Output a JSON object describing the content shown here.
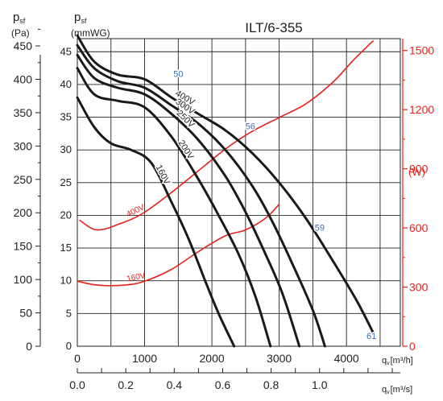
{
  "chart_data": {
    "type": "line",
    "title": "ILT/6-355",
    "left_axis": {
      "pa_label_main": "p",
      "pa_label_sub": "sf",
      "pa_unit": "(Pa)",
      "pa_ticks": [
        "0",
        "50",
        "100",
        "150",
        "200",
        "250",
        "300",
        "350",
        "400",
        "450"
      ],
      "mmwg_label_main": "p",
      "mmwg_label_sub": "sf",
      "mmwg_unit": "(mmWG)",
      "mmwg_ticks": [
        "0",
        "5",
        "10",
        "15",
        "20",
        "25",
        "30",
        "35",
        "40",
        "45"
      ],
      "ylim_mmwg": [
        0,
        47
      ]
    },
    "right_axis": {
      "unit": "(W)",
      "ticks": [
        "0",
        "300",
        "600",
        "900",
        "1200",
        "1500"
      ],
      "ylim": [
        0,
        1560
      ]
    },
    "x_axis": {
      "label_main": "q",
      "label_sub": "v",
      "label_unit": "[m³/h]",
      "ticks": [
        "0",
        "1000",
        "2000",
        "3000",
        "4000"
      ],
      "xlim": [
        0,
        4800
      ]
    },
    "x2_axis": {
      "label_main": "q",
      "label_sub": "v",
      "label_unit": "[m³/s]",
      "ticks": [
        "0.0",
        "0.2",
        "0.4",
        "0.6",
        "0.8",
        "1.0"
      ]
    },
    "pressure_series": [
      {
        "name": "400V",
        "x": [
          0,
          250,
          600,
          1000,
          1400,
          1800,
          2200,
          2600,
          3000,
          3400,
          3800,
          4150,
          4400
        ],
        "y": [
          47.5,
          43.5,
          41.5,
          40.8,
          38,
          35.5,
          33,
          29.5,
          25,
          19.5,
          13,
          7,
          2
        ]
      },
      {
        "name": "300V",
        "x": [
          0,
          250,
          600,
          1000,
          1400,
          1800,
          2200,
          2600,
          2900,
          3200,
          3500,
          3680
        ],
        "y": [
          46,
          42.5,
          40.5,
          39.5,
          36.8,
          34,
          30,
          24.5,
          19,
          12.5,
          5.5,
          0
        ]
      },
      {
        "name": "250V",
        "x": [
          0,
          250,
          600,
          1000,
          1400,
          1800,
          2200,
          2500,
          2800,
          3050,
          3300
        ],
        "y": [
          44.5,
          41,
          39.5,
          38.5,
          35.5,
          31.5,
          26,
          20.5,
          14,
          8,
          0
        ]
      },
      {
        "name": "200V",
        "x": [
          0,
          250,
          600,
          1000,
          1400,
          1800,
          2100,
          2400,
          2650,
          2870
        ],
        "y": [
          42.5,
          38.5,
          37.5,
          36.5,
          32,
          25.5,
          20,
          14,
          7.5,
          0
        ]
      },
      {
        "name": "160V",
        "x": [
          0,
          250,
          500,
          800,
          1100,
          1400,
          1650,
          1900,
          2100,
          2330
        ],
        "y": [
          38,
          33.5,
          31,
          30,
          28,
          22,
          16.5,
          10,
          5,
          0
        ]
      }
    ],
    "power_series": [
      {
        "name": "400V",
        "x": [
          30,
          300,
          700,
          1000,
          1400,
          1800,
          2200,
          2600,
          3000,
          3400,
          3800,
          4100,
          4400
        ],
        "y": [
          640,
          590,
          630,
          680,
          780,
          890,
          1000,
          1090,
          1160,
          1230,
          1340,
          1450,
          1550
        ]
      },
      {
        "name": "160V",
        "x": [
          0,
          300,
          700,
          1000,
          1400,
          1800,
          2200,
          2500,
          2800,
          3000
        ],
        "y": [
          330,
          310,
          310,
          330,
          390,
          480,
          560,
          590,
          650,
          720
        ]
      }
    ],
    "point_labels": [
      {
        "text": "50",
        "x": 1380,
        "y": 41.5
      },
      {
        "text": "56",
        "x": 2450,
        "y": 33.5
      },
      {
        "text": "59",
        "x": 3480,
        "y": 18
      },
      {
        "text": "61",
        "x": 4250,
        "y": 1.5
      }
    ],
    "grid": true
  },
  "colors": {
    "pressure": "#1a1a1a",
    "power": "#e8201a",
    "grid": "#222222",
    "marker": "#3b6fb6"
  }
}
